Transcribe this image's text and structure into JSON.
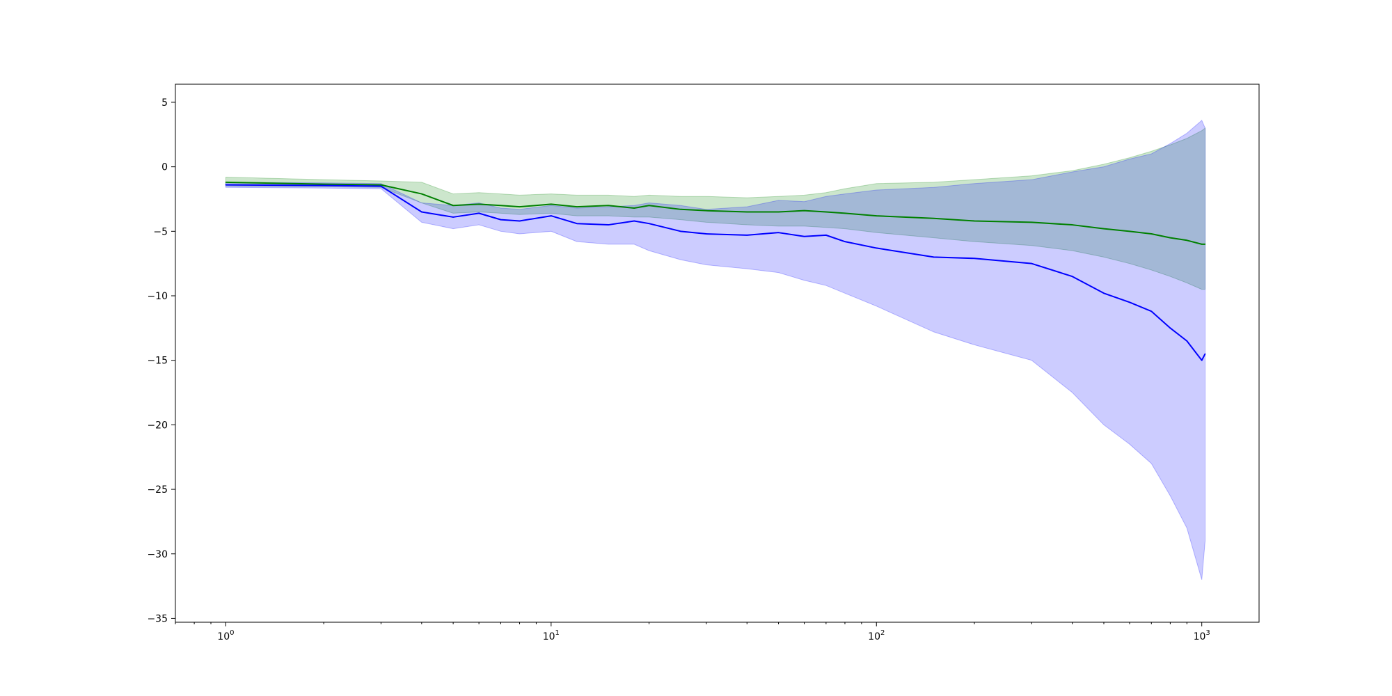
{
  "chart_data": {
    "type": "line",
    "title": "",
    "xlabel": "",
    "ylabel": "",
    "x_scale": "log",
    "xlim": [
      0.7,
      1500
    ],
    "ylim": [
      -35.3,
      6.4
    ],
    "grid": false,
    "x_ticks": [
      {
        "value": 1,
        "base": "10",
        "exp": "0"
      },
      {
        "value": 10,
        "base": "10",
        "exp": "1"
      },
      {
        "value": 100,
        "base": "10",
        "exp": "2"
      },
      {
        "value": 1000,
        "base": "10",
        "exp": "3"
      }
    ],
    "y_ticks": [
      {
        "value": 5,
        "label": "5"
      },
      {
        "value": 0,
        "label": "0"
      },
      {
        "value": -5,
        "label": "−5"
      },
      {
        "value": -10,
        "label": "−10"
      },
      {
        "value": -15,
        "label": "−15"
      },
      {
        "value": -20,
        "label": "−20"
      },
      {
        "value": -25,
        "label": "−25"
      },
      {
        "value": -30,
        "label": "−30"
      },
      {
        "value": -35,
        "label": "−35"
      }
    ],
    "series": [
      {
        "color": "#008000",
        "band_color": "#008000",
        "band_opacity": 0.2,
        "x": [
          1,
          2,
          3,
          4,
          5,
          6,
          7,
          8,
          10,
          12,
          15,
          18,
          20,
          25,
          30,
          40,
          50,
          60,
          70,
          80,
          100,
          150,
          200,
          300,
          400,
          500,
          600,
          700,
          800,
          900,
          1000,
          1024
        ],
        "y": [
          -1.2,
          -1.35,
          -1.4,
          -2.1,
          -3.0,
          -2.9,
          -3.0,
          -3.1,
          -2.9,
          -3.1,
          -3.0,
          -3.2,
          -3.0,
          -3.3,
          -3.4,
          -3.5,
          -3.5,
          -3.4,
          -3.5,
          -3.6,
          -3.8,
          -4.0,
          -4.2,
          -4.3,
          -4.5,
          -4.8,
          -5.0,
          -5.2,
          -5.5,
          -5.7,
          -6.0,
          -6.0
        ],
        "lower": [
          -1.5,
          -1.55,
          -1.6,
          -2.8,
          -3.6,
          -3.5,
          -3.6,
          -3.7,
          -3.6,
          -3.8,
          -3.8,
          -3.9,
          -3.9,
          -4.1,
          -4.3,
          -4.5,
          -4.6,
          -4.6,
          -4.7,
          -4.8,
          -5.1,
          -5.5,
          -5.8,
          -6.1,
          -6.5,
          -7.0,
          -7.5,
          -8.0,
          -8.5,
          -9.0,
          -9.5,
          -9.5
        ],
        "upper": [
          -0.8,
          -1.0,
          -1.1,
          -1.2,
          -2.1,
          -2.0,
          -2.1,
          -2.2,
          -2.1,
          -2.2,
          -2.2,
          -2.3,
          -2.2,
          -2.3,
          -2.3,
          -2.4,
          -2.3,
          -2.2,
          -2.0,
          -1.7,
          -1.3,
          -1.2,
          -1.0,
          -0.7,
          -0.3,
          0.2,
          0.7,
          1.2,
          1.7,
          2.2,
          2.8,
          3.0
        ]
      },
      {
        "color": "#0000ff",
        "band_color": "#0000ff",
        "band_opacity": 0.2,
        "x": [
          1,
          2,
          3,
          4,
          5,
          6,
          7,
          8,
          10,
          12,
          15,
          18,
          20,
          25,
          30,
          40,
          50,
          60,
          70,
          80,
          100,
          150,
          200,
          300,
          400,
          500,
          600,
          700,
          800,
          900,
          1000,
          1024
        ],
        "y": [
          -1.4,
          -1.45,
          -1.5,
          -3.5,
          -3.9,
          -3.6,
          -4.1,
          -4.2,
          -3.8,
          -4.4,
          -4.5,
          -4.2,
          -4.4,
          -5.0,
          -5.2,
          -5.3,
          -5.1,
          -5.4,
          -5.3,
          -5.8,
          -6.3,
          -7.0,
          -7.1,
          -7.5,
          -8.5,
          -9.8,
          -10.5,
          -11.2,
          -12.5,
          -13.5,
          -15.0,
          -14.5
        ],
        "lower": [
          -1.6,
          -1.65,
          -1.7,
          -4.3,
          -4.8,
          -4.5,
          -5.0,
          -5.2,
          -5.0,
          -5.8,
          -6.0,
          -6.0,
          -6.5,
          -7.2,
          -7.6,
          -7.9,
          -8.2,
          -8.8,
          -9.2,
          -9.8,
          -10.8,
          -12.8,
          -13.8,
          -15.0,
          -17.5,
          -20.0,
          -21.5,
          -23.0,
          -25.5,
          -28.0,
          -32.0,
          -29.0
        ],
        "upper": [
          -1.2,
          -1.25,
          -1.3,
          -2.8,
          -3.0,
          -2.8,
          -3.2,
          -3.3,
          -3.0,
          -3.2,
          -3.1,
          -3.0,
          -2.8,
          -3.0,
          -3.3,
          -3.1,
          -2.6,
          -2.7,
          -2.3,
          -2.1,
          -1.8,
          -1.6,
          -1.3,
          -1.0,
          -0.4,
          0.0,
          0.6,
          1.0,
          1.8,
          2.6,
          3.6,
          3.0
        ]
      }
    ]
  }
}
